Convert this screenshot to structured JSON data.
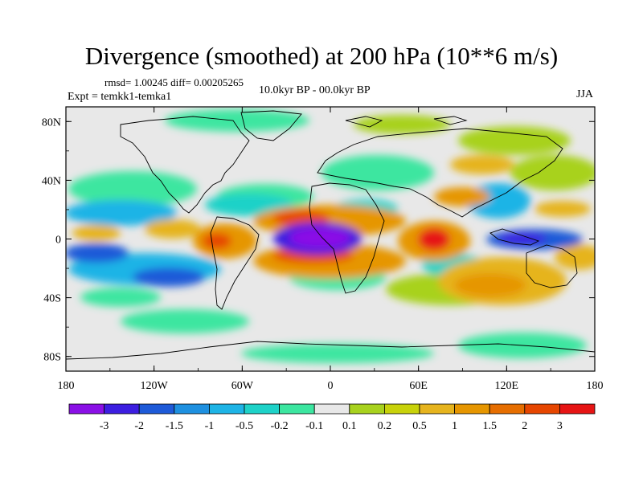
{
  "title": "Divergence (smoothed) at 200 hPa (10**6 m/s)",
  "stats": "rmsd= 1.00245  diff= 0.00205265",
  "experiment": "Expt = temkk1-temka1",
  "period": "10.0kyr BP - 00.0kyr BP",
  "season": "JJA",
  "map": {
    "lon_range": [
      -180,
      180
    ],
    "lat_range": [
      -90,
      90
    ],
    "lat_ticks": [
      {
        "value": 80,
        "label": "80N"
      },
      {
        "value": 40,
        "label": "40N"
      },
      {
        "value": 0,
        "label": "0"
      },
      {
        "value": -40,
        "label": "40S"
      },
      {
        "value": -80,
        "label": "80S"
      }
    ],
    "lon_ticks": [
      {
        "value": -180,
        "label": "180"
      },
      {
        "value": -120,
        "label": "120W"
      },
      {
        "value": -60,
        "label": "60W"
      },
      {
        "value": 0,
        "label": "0"
      },
      {
        "value": 60,
        "label": "60E"
      },
      {
        "value": 120,
        "label": "120E"
      },
      {
        "value": 180,
        "label": "180"
      }
    ],
    "background_color": "#e8e8e8",
    "coastline_color": "#000000"
  },
  "colorbar": {
    "colors": [
      "#8a10e6",
      "#3c1ee0",
      "#1e5ad8",
      "#1e90e0",
      "#1eb4e6",
      "#1ed2c8",
      "#3ce6a0",
      "#e8e8e8",
      "#a8d21e",
      "#c8d20a",
      "#e6b41e",
      "#e69600",
      "#e66e00",
      "#e64600",
      "#e61414"
    ],
    "labels": [
      "-3",
      "-2",
      "-1.5",
      "-1",
      "-0.5",
      "-0.2",
      "-0.1",
      "0.1",
      "0.2",
      "0.5",
      "1",
      "1.5",
      "2",
      "3"
    ]
  }
}
